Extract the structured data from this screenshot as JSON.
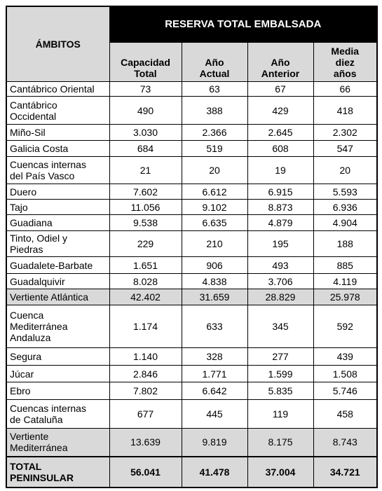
{
  "table": {
    "group_header": "RESERVA TOTAL EMBALSADA",
    "first_header": "ÁMBITOS",
    "columns": [
      [
        "Capacidad",
        "Total"
      ],
      [
        "Año",
        "Actual"
      ],
      [
        "Año",
        "Anterior"
      ],
      [
        "Media",
        "diez",
        "años"
      ]
    ],
    "rows": [
      {
        "label": [
          "Cantábrico Oriental"
        ],
        "cells": [
          "73",
          "63",
          "67",
          "66"
        ]
      },
      {
        "label": [
          "Cantábrico",
          "Occidental"
        ],
        "cells": [
          "490",
          "388",
          "429",
          "418"
        ]
      },
      {
        "label": [
          "Miño-Sil"
        ],
        "cells": [
          "3.030",
          "2.366",
          "2.645",
          "2.302"
        ]
      },
      {
        "label": [
          "Galicia Costa"
        ],
        "cells": [
          "684",
          "519",
          "608",
          "547"
        ]
      },
      {
        "label": [
          "Cuencas internas",
          "del País Vasco"
        ],
        "cells": [
          "21",
          "20",
          "19",
          "20"
        ]
      },
      {
        "label": [
          "Duero"
        ],
        "cells": [
          "7.602",
          "6.612",
          "6.915",
          "5.593"
        ]
      },
      {
        "label": [
          "Tajo"
        ],
        "cells": [
          "11.056",
          "9.102",
          "8.873",
          "6.936"
        ]
      },
      {
        "label": [
          "Guadiana"
        ],
        "cells": [
          "9.538",
          "6.635",
          "4.879",
          "4.904"
        ]
      },
      {
        "label": [
          "Tinto, Odiel y",
          "Piedras"
        ],
        "cells": [
          "229",
          "210",
          "195",
          "188"
        ]
      },
      {
        "label": [
          "Guadalete-Barbate"
        ],
        "cells": [
          "1.651",
          "906",
          "493",
          "885"
        ]
      },
      {
        "label": [
          "Guadalquivir"
        ],
        "cells": [
          "8.028",
          "4.838",
          "3.706",
          "4.119"
        ]
      },
      {
        "label": [
          "Vertiente Atlántica"
        ],
        "cells": [
          "42.402",
          "31.659",
          "28.829",
          "25.978"
        ],
        "shaded": true
      },
      {
        "label": [
          "Cuenca",
          "Mediterránea",
          "Andaluza"
        ],
        "cells": [
          "1.174",
          "633",
          "345",
          "592"
        ]
      },
      {
        "label": [
          "Segura"
        ],
        "cells": [
          "1.140",
          "328",
          "277",
          "439"
        ]
      },
      {
        "label": [
          "Júcar"
        ],
        "cells": [
          "2.846",
          "1.771",
          "1.599",
          "1.508"
        ]
      },
      {
        "label": [
          "Ebro"
        ],
        "cells": [
          "7.802",
          "6.642",
          "5.835",
          "5.746"
        ]
      },
      {
        "label": [
          "Cuencas internas",
          "de Cataluña"
        ],
        "cells": [
          "677",
          "445",
          "119",
          "458"
        ]
      },
      {
        "label": [
          "Vertiente",
          "Mediterránea"
        ],
        "cells": [
          "13.639",
          "9.819",
          "8.175",
          "8.743"
        ],
        "shaded": true
      },
      {
        "label": [
          "TOTAL",
          "PENINSULAR"
        ],
        "cells": [
          "56.041",
          "41.478",
          "37.004",
          "34.721"
        ],
        "shaded": true,
        "bold": true
      }
    ]
  }
}
